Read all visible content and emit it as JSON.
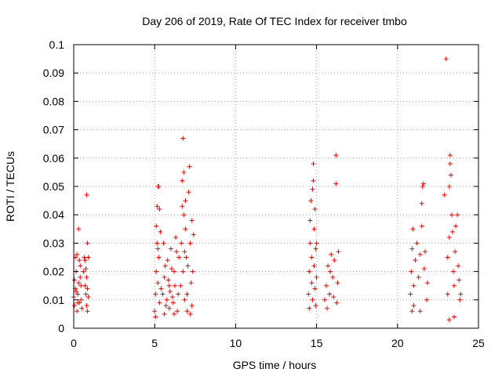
{
  "chart_data": {
    "type": "scatter",
    "title": "Day 206 of 2019, Rate Of TEC Index for receiver tmbo",
    "xlabel": "GPS time / hours",
    "ylabel": "ROTI / TECUs",
    "xlim": [
      0,
      25
    ],
    "ylim": [
      0,
      0.1
    ],
    "xticks": [
      "0",
      "5",
      "10",
      "15",
      "20",
      "25"
    ],
    "yticks": [
      "0",
      "0.01",
      "0.02",
      "0.03",
      "0.04",
      "0.05",
      "0.06",
      "0.07",
      "0.08",
      "0.09",
      "0.1"
    ],
    "grid": true,
    "marker": "plus",
    "color": "#ff0000",
    "series": [
      {
        "points": [
          [
            0.0,
            0.011
          ],
          [
            0.05,
            0.008
          ],
          [
            0.1,
            0.014
          ],
          [
            0.15,
            0.02
          ],
          [
            0.2,
            0.006
          ],
          [
            0.25,
            0.012
          ],
          [
            0.3,
            0.016
          ],
          [
            0.35,
            0.009
          ],
          [
            0.4,
            0.022
          ],
          [
            0.45,
            0.01
          ],
          [
            0.5,
            0.007
          ],
          [
            0.1,
            0.025
          ],
          [
            0.2,
            0.026
          ],
          [
            0.3,
            0.035
          ],
          [
            0.35,
            0.024
          ],
          [
            0.4,
            0.018
          ],
          [
            0.15,
            0.013
          ],
          [
            0.25,
            0.009
          ],
          [
            0.45,
            0.015
          ],
          [
            0.05,
            0.017
          ],
          [
            0.6,
            0.02
          ],
          [
            0.65,
            0.025
          ],
          [
            0.7,
            0.015
          ],
          [
            0.7,
            0.024
          ],
          [
            0.75,
            0.012
          ],
          [
            0.75,
            0.021
          ],
          [
            0.8,
            0.047
          ],
          [
            0.8,
            0.008
          ],
          [
            0.8,
            0.018
          ],
          [
            0.85,
            0.03
          ],
          [
            0.85,
            0.014
          ],
          [
            0.85,
            0.006
          ],
          [
            0.9,
            0.025
          ],
          [
            0.9,
            0.011
          ],
          [
            5.0,
            0.006
          ],
          [
            5.05,
            0.012
          ],
          [
            5.1,
            0.02
          ],
          [
            5.15,
            0.03
          ],
          [
            5.15,
            0.043
          ],
          [
            5.2,
            0.05
          ],
          [
            5.2,
            0.016
          ],
          [
            5.25,
            0.025
          ],
          [
            5.3,
            0.009
          ],
          [
            5.3,
            0.042
          ],
          [
            5.35,
            0.034
          ],
          [
            5.4,
            0.014
          ],
          [
            5.05,
            0.004
          ],
          [
            5.1,
            0.036
          ],
          [
            5.2,
            0.028
          ],
          [
            5.25,
            0.05
          ],
          [
            5.5,
            0.012
          ],
          [
            5.6,
            0.018
          ],
          [
            5.7,
            0.008
          ],
          [
            5.8,
            0.024
          ],
          [
            5.9,
            0.015
          ],
          [
            6.0,
            0.028
          ],
          [
            6.1,
            0.011
          ],
          [
            6.2,
            0.02
          ],
          [
            6.3,
            0.032
          ],
          [
            6.4,
            0.006
          ],
          [
            6.5,
            0.025
          ],
          [
            5.55,
            0.03
          ],
          [
            5.65,
            0.022
          ],
          [
            5.75,
            0.01
          ],
          [
            5.85,
            0.017
          ],
          [
            5.95,
            0.013
          ],
          [
            6.05,
            0.021
          ],
          [
            6.15,
            0.009
          ],
          [
            6.25,
            0.015
          ],
          [
            6.35,
            0.027
          ],
          [
            6.45,
            0.012
          ],
          [
            5.6,
            0.005
          ],
          [
            5.9,
            0.007
          ],
          [
            6.2,
            0.005
          ],
          [
            6.6,
            0.015
          ],
          [
            6.65,
            0.03
          ],
          [
            6.7,
            0.043
          ],
          [
            6.7,
            0.052
          ],
          [
            6.75,
            0.067
          ],
          [
            6.75,
            0.02
          ],
          [
            6.8,
            0.04
          ],
          [
            6.8,
            0.055
          ],
          [
            6.85,
            0.01
          ],
          [
            6.9,
            0.035
          ],
          [
            6.9,
            0.045
          ],
          [
            6.95,
            0.025
          ],
          [
            7.0,
            0.012
          ],
          [
            7.05,
            0.022
          ],
          [
            7.1,
            0.048
          ],
          [
            7.15,
            0.057
          ],
          [
            7.2,
            0.03
          ],
          [
            7.25,
            0.016
          ],
          [
            7.3,
            0.008
          ],
          [
            7.3,
            0.038
          ],
          [
            7.35,
            0.02
          ],
          [
            7.4,
            0.033
          ],
          [
            7.0,
            0.006
          ],
          [
            7.2,
            0.005
          ],
          [
            6.85,
            0.027
          ],
          [
            14.5,
            0.012
          ],
          [
            14.55,
            0.02
          ],
          [
            14.6,
            0.03
          ],
          [
            14.6,
            0.038
          ],
          [
            14.65,
            0.045
          ],
          [
            14.7,
            0.016
          ],
          [
            14.7,
            0.025
          ],
          [
            14.75,
            0.049
          ],
          [
            14.75,
            0.01
          ],
          [
            14.8,
            0.052
          ],
          [
            14.8,
            0.058
          ],
          [
            14.85,
            0.035
          ],
          [
            14.85,
            0.022
          ],
          [
            14.9,
            0.014
          ],
          [
            14.9,
            0.042
          ],
          [
            14.95,
            0.028
          ],
          [
            15.0,
            0.018
          ],
          [
            15.0,
            0.03
          ],
          [
            14.55,
            0.007
          ],
          [
            14.95,
            0.008
          ],
          [
            15.5,
            0.01
          ],
          [
            15.6,
            0.015
          ],
          [
            15.7,
            0.022
          ],
          [
            15.8,
            0.012
          ],
          [
            15.9,
            0.026
          ],
          [
            16.0,
            0.018
          ],
          [
            16.1,
            0.024
          ],
          [
            16.2,
            0.061
          ],
          [
            16.2,
            0.051
          ],
          [
            16.3,
            0.016
          ],
          [
            16.35,
            0.027
          ],
          [
            15.65,
            0.007
          ],
          [
            15.85,
            0.02
          ],
          [
            16.05,
            0.011
          ],
          [
            16.25,
            0.009
          ],
          [
            20.8,
            0.012
          ],
          [
            20.85,
            0.02
          ],
          [
            20.9,
            0.028
          ],
          [
            20.95,
            0.035
          ],
          [
            21.0,
            0.015
          ],
          [
            21.1,
            0.024
          ],
          [
            21.2,
            0.03
          ],
          [
            21.3,
            0.018
          ],
          [
            21.4,
            0.026
          ],
          [
            21.5,
            0.036
          ],
          [
            21.5,
            0.044
          ],
          [
            21.55,
            0.05
          ],
          [
            21.6,
            0.051
          ],
          [
            21.65,
            0.021
          ],
          [
            21.7,
            0.027
          ],
          [
            21.8,
            0.01
          ],
          [
            21.85,
            0.016
          ],
          [
            21.0,
            0.008
          ],
          [
            21.4,
            0.006
          ],
          [
            20.9,
            0.006
          ],
          [
            22.9,
            0.047
          ],
          [
            23.0,
            0.095
          ],
          [
            23.1,
            0.012
          ],
          [
            23.1,
            0.025
          ],
          [
            23.2,
            0.032
          ],
          [
            23.2,
            0.05
          ],
          [
            23.25,
            0.061
          ],
          [
            23.25,
            0.058
          ],
          [
            23.3,
            0.054
          ],
          [
            23.35,
            0.04
          ],
          [
            23.4,
            0.034
          ],
          [
            23.45,
            0.02
          ],
          [
            23.5,
            0.015
          ],
          [
            23.55,
            0.027
          ],
          [
            23.6,
            0.036
          ],
          [
            23.7,
            0.04
          ],
          [
            23.75,
            0.022
          ],
          [
            23.8,
            0.017
          ],
          [
            23.85,
            0.01
          ],
          [
            23.2,
            0.003
          ],
          [
            23.5,
            0.004
          ],
          [
            23.9,
            0.012
          ]
        ]
      }
    ]
  }
}
